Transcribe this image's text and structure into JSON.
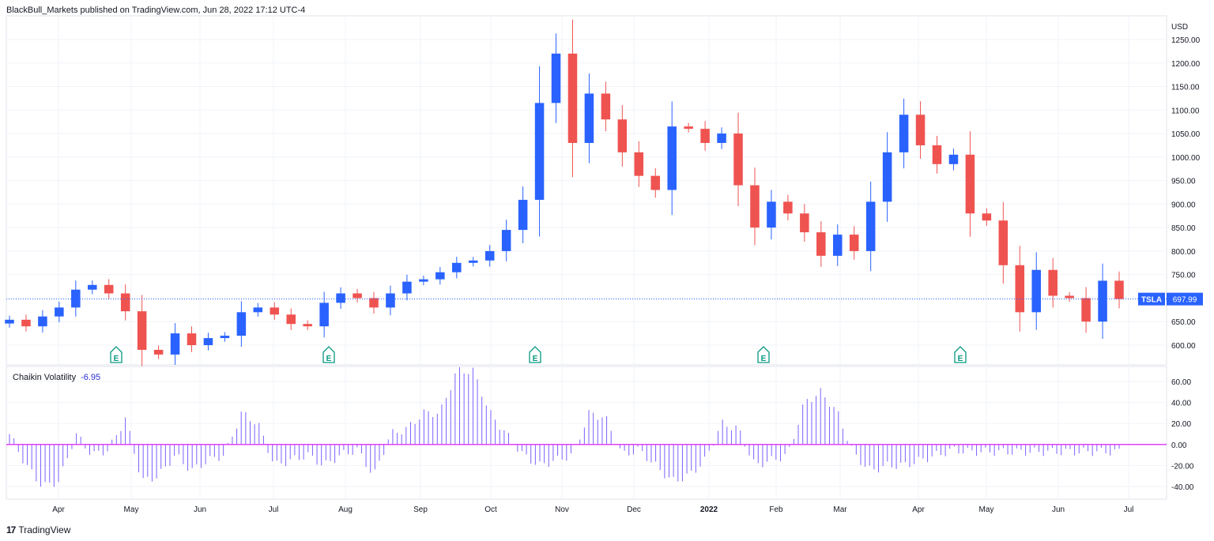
{
  "header": {
    "published": "BlackBull_Markets published on TradingView.com, Jun 28, 2022 17:12 UTC-4"
  },
  "footer": {
    "brand": "TradingView",
    "logo_text": "17"
  },
  "price_axis": {
    "currency": "USD",
    "ticks": [
      "1250.00",
      "1200.00",
      "1150.00",
      "1100.00",
      "1050.00",
      "1000.00",
      "950.00",
      "900.00",
      "850.00",
      "800.00",
      "750.00",
      "700.00",
      "650.00",
      "600.00"
    ],
    "tick_values": [
      1250,
      1200,
      1150,
      1100,
      1050,
      1000,
      950,
      900,
      850,
      800,
      750,
      700,
      650,
      600
    ]
  },
  "symbol_tag": {
    "symbol": "TSLA",
    "price": "697.99",
    "value": 697.99,
    "color": "#2962ff"
  },
  "indicator": {
    "name": "Chaikin Volatility",
    "value": "-6.95",
    "axis_ticks": [
      "60.00",
      "40.00",
      "20.00",
      "0.00",
      "-20.00",
      "-40.00"
    ],
    "axis_values": [
      60,
      40,
      20,
      0,
      -20,
      -40
    ],
    "bar_color": "#7b61ff",
    "zero_line_color": "#e040fb"
  },
  "time_axis": [
    "Apr",
    "May",
    "Jun",
    "Jul",
    "Aug",
    "Sep",
    "Oct",
    "Nov",
    "Dec",
    "2022",
    "Feb",
    "Mar",
    "Apr",
    "May",
    "Jun",
    "Jul"
  ],
  "earnings_markers": [
    "E",
    "E",
    "E",
    "E",
    "E"
  ],
  "colors": {
    "up": "#2962ff",
    "down": "#ef5350",
    "grid": "#f0f3fa",
    "text": "#131722"
  },
  "chart_data": {
    "type": "candlestick",
    "symbol": "TSLA",
    "currency": "USD",
    "ylim": [
      560,
      1270
    ],
    "dates": [
      "2021-03-19",
      "2021-03-26",
      "2021-04-01",
      "2021-04-09",
      "2021-04-16",
      "2021-04-23",
      "2021-04-30",
      "2021-05-07",
      "2021-05-14",
      "2021-05-21",
      "2021-05-28",
      "2021-06-04",
      "2021-06-11",
      "2021-06-18",
      "2021-06-25",
      "2021-07-02",
      "2021-07-09",
      "2021-07-16",
      "2021-07-23",
      "2021-07-30",
      "2021-08-06",
      "2021-08-13",
      "2021-08-20",
      "2021-08-27",
      "2021-09-03",
      "2021-09-10",
      "2021-09-17",
      "2021-09-24",
      "2021-10-01",
      "2021-10-08",
      "2021-10-15",
      "2021-10-22",
      "2021-10-29",
      "2021-11-05",
      "2021-11-12",
      "2021-11-19",
      "2021-11-26",
      "2021-12-03",
      "2021-12-10",
      "2021-12-17",
      "2021-12-23",
      "2021-12-31",
      "2022-01-07",
      "2022-01-14",
      "2022-01-21",
      "2022-01-28",
      "2022-02-04",
      "2022-02-11",
      "2022-02-18",
      "2022-02-25",
      "2022-03-04",
      "2022-03-11",
      "2022-03-18",
      "2022-03-25",
      "2022-04-01",
      "2022-04-08",
      "2022-04-14",
      "2022-04-22",
      "2022-04-29",
      "2022-05-06",
      "2022-05-13",
      "2022-05-20",
      "2022-05-27",
      "2022-06-03",
      "2022-06-10",
      "2022-06-17",
      "2022-06-24",
      "2022-06-28"
    ],
    "close": [
      654,
      640,
      661,
      680,
      718,
      728,
      710,
      672,
      590,
      580,
      625,
      600,
      615,
      620,
      670,
      680,
      665,
      645,
      640,
      690,
      710,
      700,
      680,
      710,
      735,
      740,
      755,
      775,
      780,
      800,
      845,
      909,
      1115,
      1220,
      1030,
      1135,
      1080,
      1010,
      960,
      930,
      1065,
      1060,
      1030,
      1050,
      940,
      850,
      905,
      880,
      840,
      790,
      835,
      800,
      905,
      1010,
      1090,
      1025,
      985,
      1005,
      880,
      865,
      770,
      670,
      760,
      705,
      700,
      650,
      737,
      697.99
    ],
    "chaikin_volatility": [
      10,
      -20,
      -40,
      -35,
      10,
      -10,
      -5,
      25,
      -35,
      -30,
      -10,
      -25,
      -15,
      -10,
      30,
      20,
      -20,
      -15,
      -10,
      -20,
      -10,
      -5,
      -30,
      10,
      15,
      30,
      30,
      70,
      70,
      30,
      10,
      -10,
      -20,
      -15,
      -10,
      30,
      25,
      -10,
      -5,
      -20,
      -35,
      -30,
      -15,
      20,
      15,
      -20,
      -15,
      -10,
      40,
      50,
      30,
      -10,
      -25,
      -20,
      -20,
      -15,
      -10,
      -5,
      -6.95,
      -6.95,
      -6.95,
      -6.95,
      -6.95,
      -6.95,
      -6.95,
      -6.95,
      -6.95,
      -6.95
    ]
  }
}
